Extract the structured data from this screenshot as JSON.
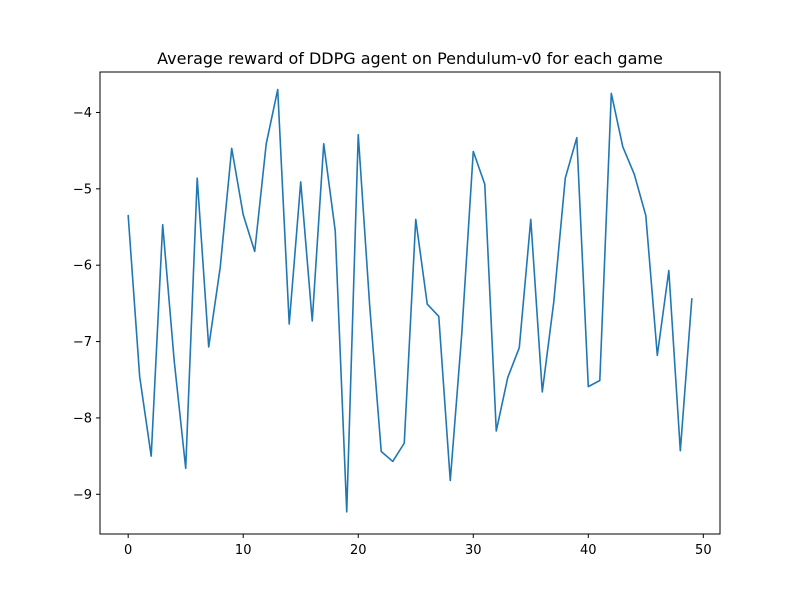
{
  "chart_data": {
    "type": "line",
    "title": "Average reward of DDPG agent on Pendulum-v0 for each game",
    "xlabel": "",
    "ylabel": "",
    "xlim": [
      -2.45,
      51.45
    ],
    "ylim": [
      -9.52,
      -3.47
    ],
    "xticks": [
      0,
      10,
      20,
      30,
      40,
      50
    ],
    "yticks": [
      -9,
      -8,
      -7,
      -6,
      -5,
      -4
    ],
    "grid": false,
    "series": [
      {
        "color": "#1f77b4",
        "x": [
          0,
          1,
          2,
          3,
          4,
          5,
          6,
          7,
          8,
          9,
          10,
          11,
          12,
          13,
          14,
          15,
          16,
          17,
          18,
          19,
          20,
          21,
          22,
          23,
          24,
          25,
          26,
          27,
          28,
          29,
          30,
          31,
          32,
          33,
          34,
          35,
          36,
          37,
          38,
          39,
          40,
          41,
          42,
          43,
          44,
          45,
          46,
          47,
          48,
          49
        ],
        "y": [
          -5.35,
          -7.46,
          -8.5,
          -5.47,
          -7.25,
          -8.66,
          -4.86,
          -7.07,
          -6.03,
          -4.47,
          -5.34,
          -5.82,
          -4.41,
          -3.7,
          -6.77,
          -4.91,
          -6.73,
          -4.41,
          -5.55,
          -9.23,
          -4.29,
          -6.54,
          -8.44,
          -8.57,
          -8.33,
          -5.4,
          -6.51,
          -6.67,
          -8.82,
          -6.9,
          -4.51,
          -4.94,
          -8.17,
          -7.47,
          -7.08,
          -5.4,
          -7.66,
          -6.48,
          -4.86,
          -4.33,
          -7.59,
          -7.51,
          -3.75,
          -4.45,
          -4.81,
          -5.35,
          -7.18,
          -6.07,
          -8.43,
          -6.44
        ]
      }
    ]
  }
}
